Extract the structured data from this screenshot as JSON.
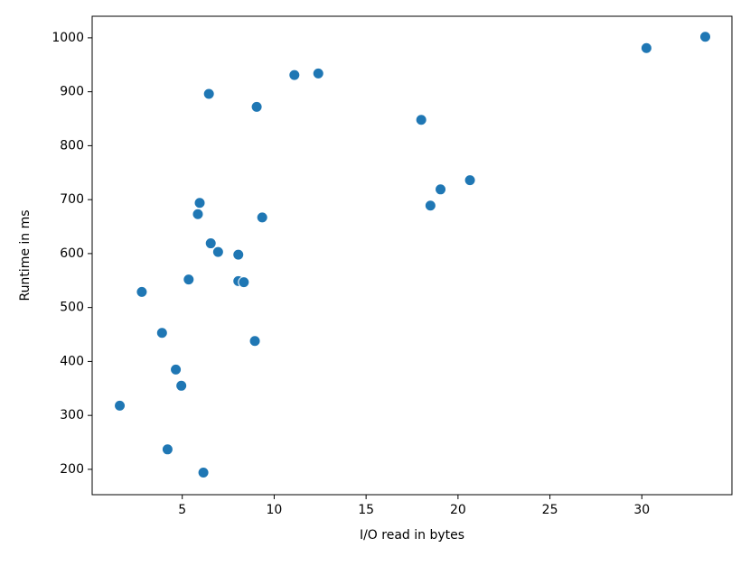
{
  "chart_data": {
    "type": "scatter",
    "x_label": "I/O read in bytes",
    "y_label": "Runtime in ms",
    "color": "#1f77b4",
    "x": [
      1.6,
      2.8,
      3.9,
      4.2,
      4.65,
      4.95,
      5.35,
      5.85,
      5.95,
      6.15,
      6.45,
      6.55,
      6.95,
      8.05,
      8.05,
      8.35,
      8.95,
      9.05,
      9.35,
      11.1,
      12.4,
      18.0,
      18.5,
      19.05,
      20.65,
      30.25,
      33.45
    ],
    "values": [
      318,
      529,
      453,
      237,
      385,
      355,
      552,
      673,
      694,
      194,
      896,
      619,
      603,
      598,
      549,
      547,
      438,
      872,
      667,
      931,
      934,
      848,
      689,
      719,
      736,
      981,
      1002
    ],
    "xlim": [
      0.1,
      34.9
    ],
    "xticks": [
      5,
      10,
      15,
      20,
      25,
      30
    ],
    "ylim": [
      153,
      1040
    ],
    "yticks": [
      200,
      300,
      400,
      500,
      600,
      700,
      800,
      900,
      1000
    ],
    "grid": false
  }
}
